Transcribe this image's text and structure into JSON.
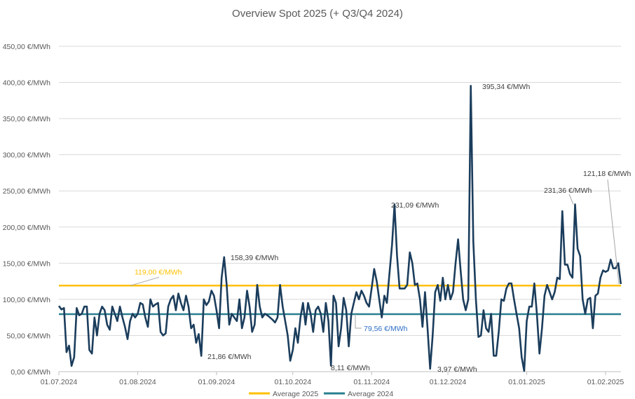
{
  "chart_data": {
    "type": "line",
    "title": "Overview Spot 2025 (+ Q3/Q4 2024)",
    "xlabel": "",
    "ylabel": "",
    "ylim": [
      0,
      450
    ],
    "yticks": [
      0,
      50,
      100,
      150,
      200,
      250,
      300,
      350,
      400,
      450
    ],
    "ytick_labels": [
      "0,00 €/MWh",
      "50,00 €/MWh",
      "100,00 €/MWh",
      "150,00 €/MWh",
      "200,00 €/MWh",
      "250,00 €/MWh",
      "300,00 €/MWh",
      "350,00 €/MWh",
      "400,00 €/MWh",
      "450,00 €/MWh"
    ],
    "xtick_labels": [
      "01.07.2024",
      "01.08.2024",
      "01.09.2024",
      "01.10.2024",
      "01.11.2024",
      "01.12.2024",
      "01.01.2025",
      "01.02.2025"
    ],
    "grid": true,
    "legend_placement": "bottom",
    "colors": {
      "series": "#1b3d5c",
      "average_2025": "#ffc000",
      "average_2024": "#2a7f8f",
      "avg2024_label": "#2e6fc7",
      "text": "#595959",
      "grid": "#d9d9d9"
    },
    "series": {
      "unit": "€/MWh",
      "values_by_month": [
        {
          "month": "07.2024",
          "values": [
            91,
            86,
            88,
            27,
            36,
            8,
            20,
            88,
            78,
            80,
            90,
            90,
            30,
            25,
            75,
            50,
            80,
            90,
            85,
            65,
            58,
            90,
            80,
            70,
            90,
            75,
            62,
            45,
            70,
            80,
            75
          ]
        },
        {
          "month": "08.2024",
          "values": [
            80,
            95,
            93,
            75,
            62,
            100,
            90,
            93,
            95,
            55,
            50,
            53,
            90,
            100,
            105,
            85,
            108,
            95,
            85,
            105,
            90,
            60,
            65,
            40,
            52,
            21.86,
            100,
            92,
            97,
            112,
            105
          ]
        },
        {
          "month": "09.2024",
          "values": [
            85,
            60,
            130,
            158.39,
            120,
            65,
            80,
            75,
            70,
            100,
            60,
            75,
            112,
            90,
            55,
            65,
            120,
            90,
            75,
            80,
            78,
            75,
            72,
            68,
            75,
            120,
            90,
            70,
            50,
            15
          ]
        },
        {
          "month": "10.2024",
          "values": [
            30,
            60,
            40,
            75,
            95,
            65,
            95,
            80,
            55,
            85,
            90,
            80,
            55,
            95,
            70,
            8.11,
            105,
            95,
            35,
            60,
            102,
            85,
            35,
            80,
            95,
            110,
            100,
            112,
            105,
            95,
            90
          ]
        },
        {
          "month": "11.2024",
          "values": [
            115,
            142,
            125,
            100,
            75,
            105,
            95,
            135,
            175,
            231.09,
            160,
            115,
            115,
            115,
            120,
            165,
            150,
            120,
            122,
            100,
            62,
            110,
            60,
            3.97,
            50,
            110,
            120,
            98,
            130,
            100
          ]
        },
        {
          "month": "12.2024",
          "values": [
            120,
            100,
            110,
            150,
            183,
            140,
            100,
            85,
            100,
            395.34,
            180,
            100,
            48,
            50,
            85,
            60,
            55,
            80,
            22,
            22,
            55,
            100,
            98,
            115,
            122,
            122,
            100,
            80,
            60,
            20,
            1
          ]
        },
        {
          "month": "01.2025",
          "values": [
            70,
            90,
            90,
            122,
            80,
            25,
            60,
            105,
            120,
            110,
            100,
            110,
            130,
            128,
            222,
            148,
            148,
            135,
            130,
            231.36,
            170,
            160,
            100,
            80,
            100,
            102,
            60,
            105,
            108,
            130,
            140
          ]
        },
        {
          "month": "02.2025",
          "values": [
            138,
            140,
            155,
            143,
            143,
            150,
            121.18
          ]
        }
      ]
    },
    "reference_lines": [
      {
        "name": "Average 2025",
        "value": 119.0,
        "label": "119,00 €/MWh"
      },
      {
        "name": "Average 2024",
        "value": 79.56,
        "label": "79,56 €/MWh"
      }
    ],
    "annotations": [
      {
        "text": "158,39 €/MWh",
        "value": 158.39,
        "date": "04.09.2024"
      },
      {
        "text": "21,86 €/MWh",
        "value": 21.86,
        "date": "26.08.2024"
      },
      {
        "text": "8,11 €/MWh",
        "value": 8.11,
        "date": "16.10.2024"
      },
      {
        "text": "231,09 €/MWh",
        "value": 231.09,
        "date": "10.11.2024"
      },
      {
        "text": "395,34 €/MWh",
        "value": 395.34,
        "date": "10.12.2024"
      },
      {
        "text": "3,97 €/MWh",
        "value": 3.97,
        "date": "24.11.2024"
      },
      {
        "text": "231,36 €/MWh",
        "value": 231.36,
        "date": "20.01.2025"
      },
      {
        "text": "121,18 €/MWh",
        "value": 121.18,
        "date": "07.02.2025"
      }
    ]
  }
}
